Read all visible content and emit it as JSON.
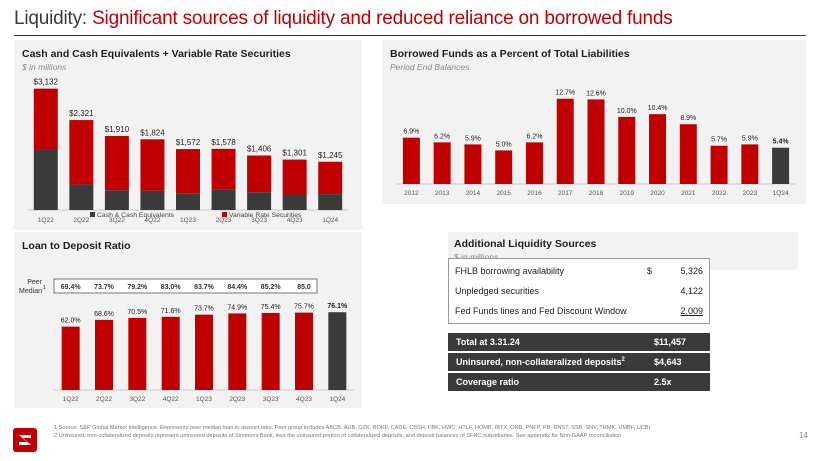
{
  "header": {
    "lead": "Liquidity: ",
    "accent": "Significant sources of liquidity and reduced reliance on borrowed funds"
  },
  "colors": {
    "red": "#c00000",
    "dark": "#3a3a3a",
    "panel": "#f2f2f2"
  },
  "panels": {
    "cash": {
      "title": "Cash and Cash Equivalents + Variable Rate Securities",
      "subtitle": "$ in millions"
    },
    "borrowed": {
      "title": "Borrowed Funds as a Percent of Total Liabilities",
      "subtitle": "Period End Balances"
    },
    "ltd": {
      "title": "Loan to Deposit Ratio"
    }
  },
  "chart_data": [
    {
      "type": "bar",
      "stacked": true,
      "categories": [
        "1Q22",
        "2Q22",
        "3Q22",
        "4Q22",
        "1Q23",
        "2Q23",
        "3Q23",
        "4Q23",
        "1Q24"
      ],
      "totals_labels": [
        "$3,132",
        "$2,321",
        "$1,910",
        "$1,824",
        "$1,572",
        "$1,578",
        "$1,406",
        "$1,301",
        "$1,245"
      ],
      "series": [
        {
          "name": "Cash & Cash Equivalents",
          "values": [
            1560,
            660,
            510,
            500,
            420,
            520,
            460,
            400,
            410
          ]
        },
        {
          "name": "Variable Rate Securities",
          "values": [
            1572,
            1661,
            1400,
            1324,
            1152,
            1058,
            946,
            901,
            835
          ]
        }
      ],
      "ylim": [
        0,
        3200
      ],
      "legend": "bottom"
    },
    {
      "type": "bar",
      "categories": [
        "2012",
        "2013",
        "2014",
        "2015",
        "2016",
        "2017",
        "2018",
        "2019",
        "2020",
        "2021",
        "2022",
        "2023",
        "1Q24"
      ],
      "values": [
        6.9,
        6.2,
        5.9,
        5.0,
        6.2,
        12.7,
        12.6,
        10.0,
        10.4,
        8.9,
        5.7,
        5.9,
        5.4
      ],
      "labels": [
        "6.9%",
        "6.2%",
        "5.9%",
        "5.0%",
        "6.2%",
        "12.7%",
        "12.6%",
        "10.0%",
        "10.4%",
        "8.9%",
        "5.7%",
        "5.9%",
        "5.4%"
      ],
      "ylim": [
        0,
        14
      ]
    },
    {
      "type": "bar",
      "categories": [
        "1Q22",
        "2Q22",
        "3Q22",
        "4Q22",
        "1Q23",
        "2Q23",
        "3Q23",
        "4Q23",
        "1Q24"
      ],
      "values": [
        62.0,
        68.6,
        70.5,
        71.6,
        73.7,
        74.9,
        75.4,
        75.7,
        76.1
      ],
      "labels": [
        "62.0%",
        "68.6%",
        "70.5%",
        "71.6%",
        "73.7%",
        "74.9%",
        "75.4%",
        "75.7%",
        "76.1%"
      ],
      "peer_label": "Peer",
      "peer_label2": "Median",
      "peer_sup": "1",
      "peer_values": [
        "69.4%",
        "73.7%",
        "79.2%",
        "83.0%",
        "83.7%",
        "84.4%",
        "85.2%",
        "85.0"
      ],
      "ylim": [
        0,
        90
      ]
    }
  ],
  "liquidity": {
    "title": "Additional Liquidity Sources",
    "subtitle": "$ in millions",
    "rows": [
      {
        "label": "FHLB borrowing availability",
        "currency": "$",
        "value": "5,326"
      },
      {
        "label": "Unpledged securities",
        "currency": "",
        "value": "4,122"
      },
      {
        "label": "Fed Funds lines and Fed Discount Window",
        "currency": "",
        "value": "2,009"
      }
    ],
    "total": {
      "label": "Total at 3.31.24",
      "value": "$11,457"
    },
    "uninsured": {
      "label": "Uninsured, non-collateralized deposits",
      "sup": "2",
      "value": "$4,643"
    },
    "coverage": {
      "label": "Coverage ratio",
      "value": "2.5x"
    }
  },
  "footnotes": {
    "one": "1   Source: S&P Global Market Intelligence. Represents peer median loan to deposit ratio. Peer group includes ABCB, AUB, OZK, BOKF, CADE, CBSH, FBK, HWC, HTLF, HOMB, IBTX, ONB, PNFP, PB, RNST, SSB, SNV, TRMK, UMBF, UCBI",
    "two": "2   Uninsured, non-collateralized deposits represent uninsured deposits of Simmons Bank, less the uninsured portion of collateralized deposits, and deposit balances of SFNC subsidiaries. See appendix for Non-GAAP reconciliation"
  },
  "page_number": "14"
}
